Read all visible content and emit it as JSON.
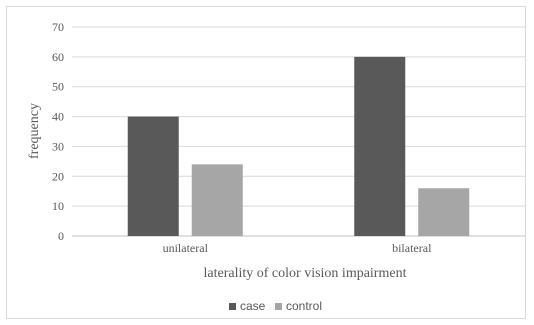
{
  "chart_data": {
    "type": "bar",
    "title": "",
    "xlabel": "laterality of color vision impairment",
    "ylabel": "frequency",
    "categories": [
      "unilateral",
      "bilateral"
    ],
    "series": [
      {
        "name": "case",
        "values": [
          40,
          60
        ],
        "color": "#595959"
      },
      {
        "name": "control",
        "values": [
          24,
          16
        ],
        "color": "#a6a6a6"
      }
    ],
    "ylim": [
      0,
      70
    ],
    "yticks": [
      "0",
      "10",
      "20",
      "30",
      "40",
      "50",
      "60",
      "70"
    ],
    "grid": true,
    "legend": "bottom-center"
  }
}
